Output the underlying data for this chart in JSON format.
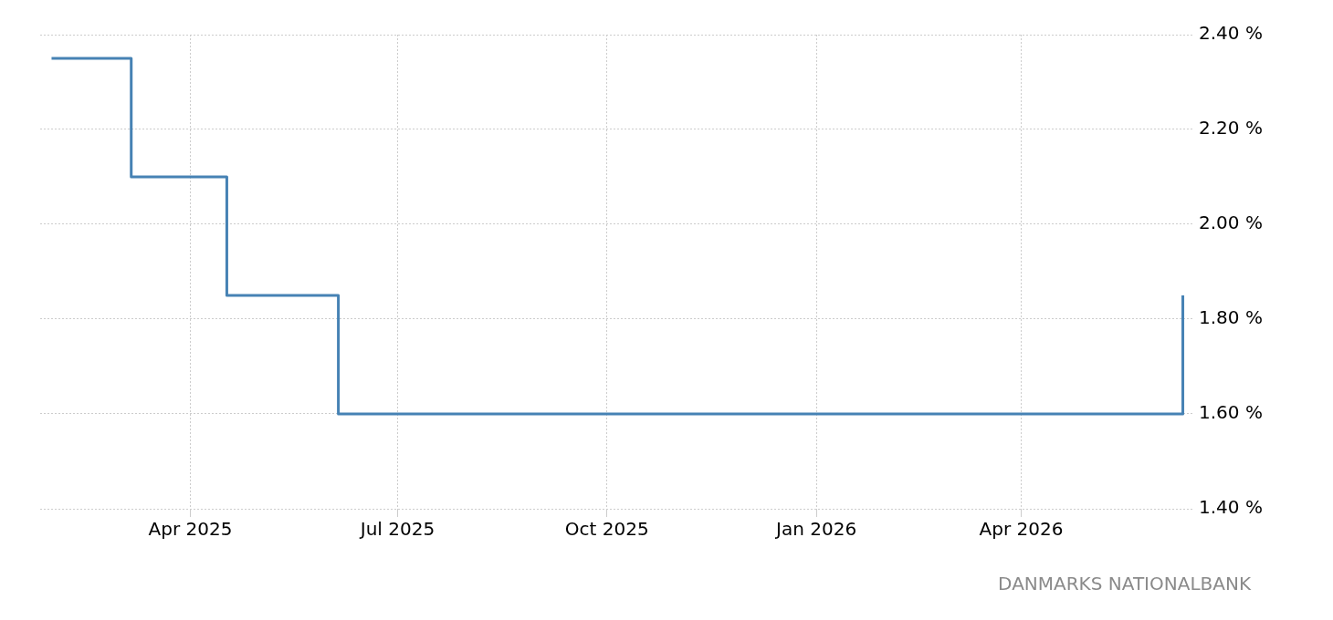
{
  "chart_data": {
    "type": "step",
    "x": [
      "2025-01-30",
      "2025-03-06",
      "2025-04-17",
      "2025-06-05",
      "2026-06-11"
    ],
    "values": [
      2.35,
      2.1,
      1.85,
      1.6,
      1.85
    ],
    "color": "#4682b4",
    "xlim": [
      "2025-01-25",
      "2026-06-16"
    ],
    "xticks": [
      {
        "value": "2025-04-01",
        "label": "Apr 2025"
      },
      {
        "value": "2025-07-01",
        "label": "Jul 2025"
      },
      {
        "value": "2025-10-01",
        "label": "Oct 2025"
      },
      {
        "value": "2026-01-01",
        "label": "Jan 2026"
      },
      {
        "value": "2026-04-01",
        "label": "Apr 2026"
      }
    ],
    "ylim": [
      1.4,
      2.4
    ],
    "yticks": [
      {
        "value": 1.4,
        "label": "1.40 %"
      },
      {
        "value": 1.6,
        "label": "1.60 %"
      },
      {
        "value": 1.8,
        "label": "1.80 %"
      },
      {
        "value": 2.0,
        "label": "2.00 %"
      },
      {
        "value": 2.2,
        "label": "2.20 %"
      },
      {
        "value": 2.4,
        "label": "2.40 %"
      }
    ],
    "grid": true,
    "marker": "none",
    "annotations": [
      "DANMARKS NATIONALBANK"
    ]
  }
}
